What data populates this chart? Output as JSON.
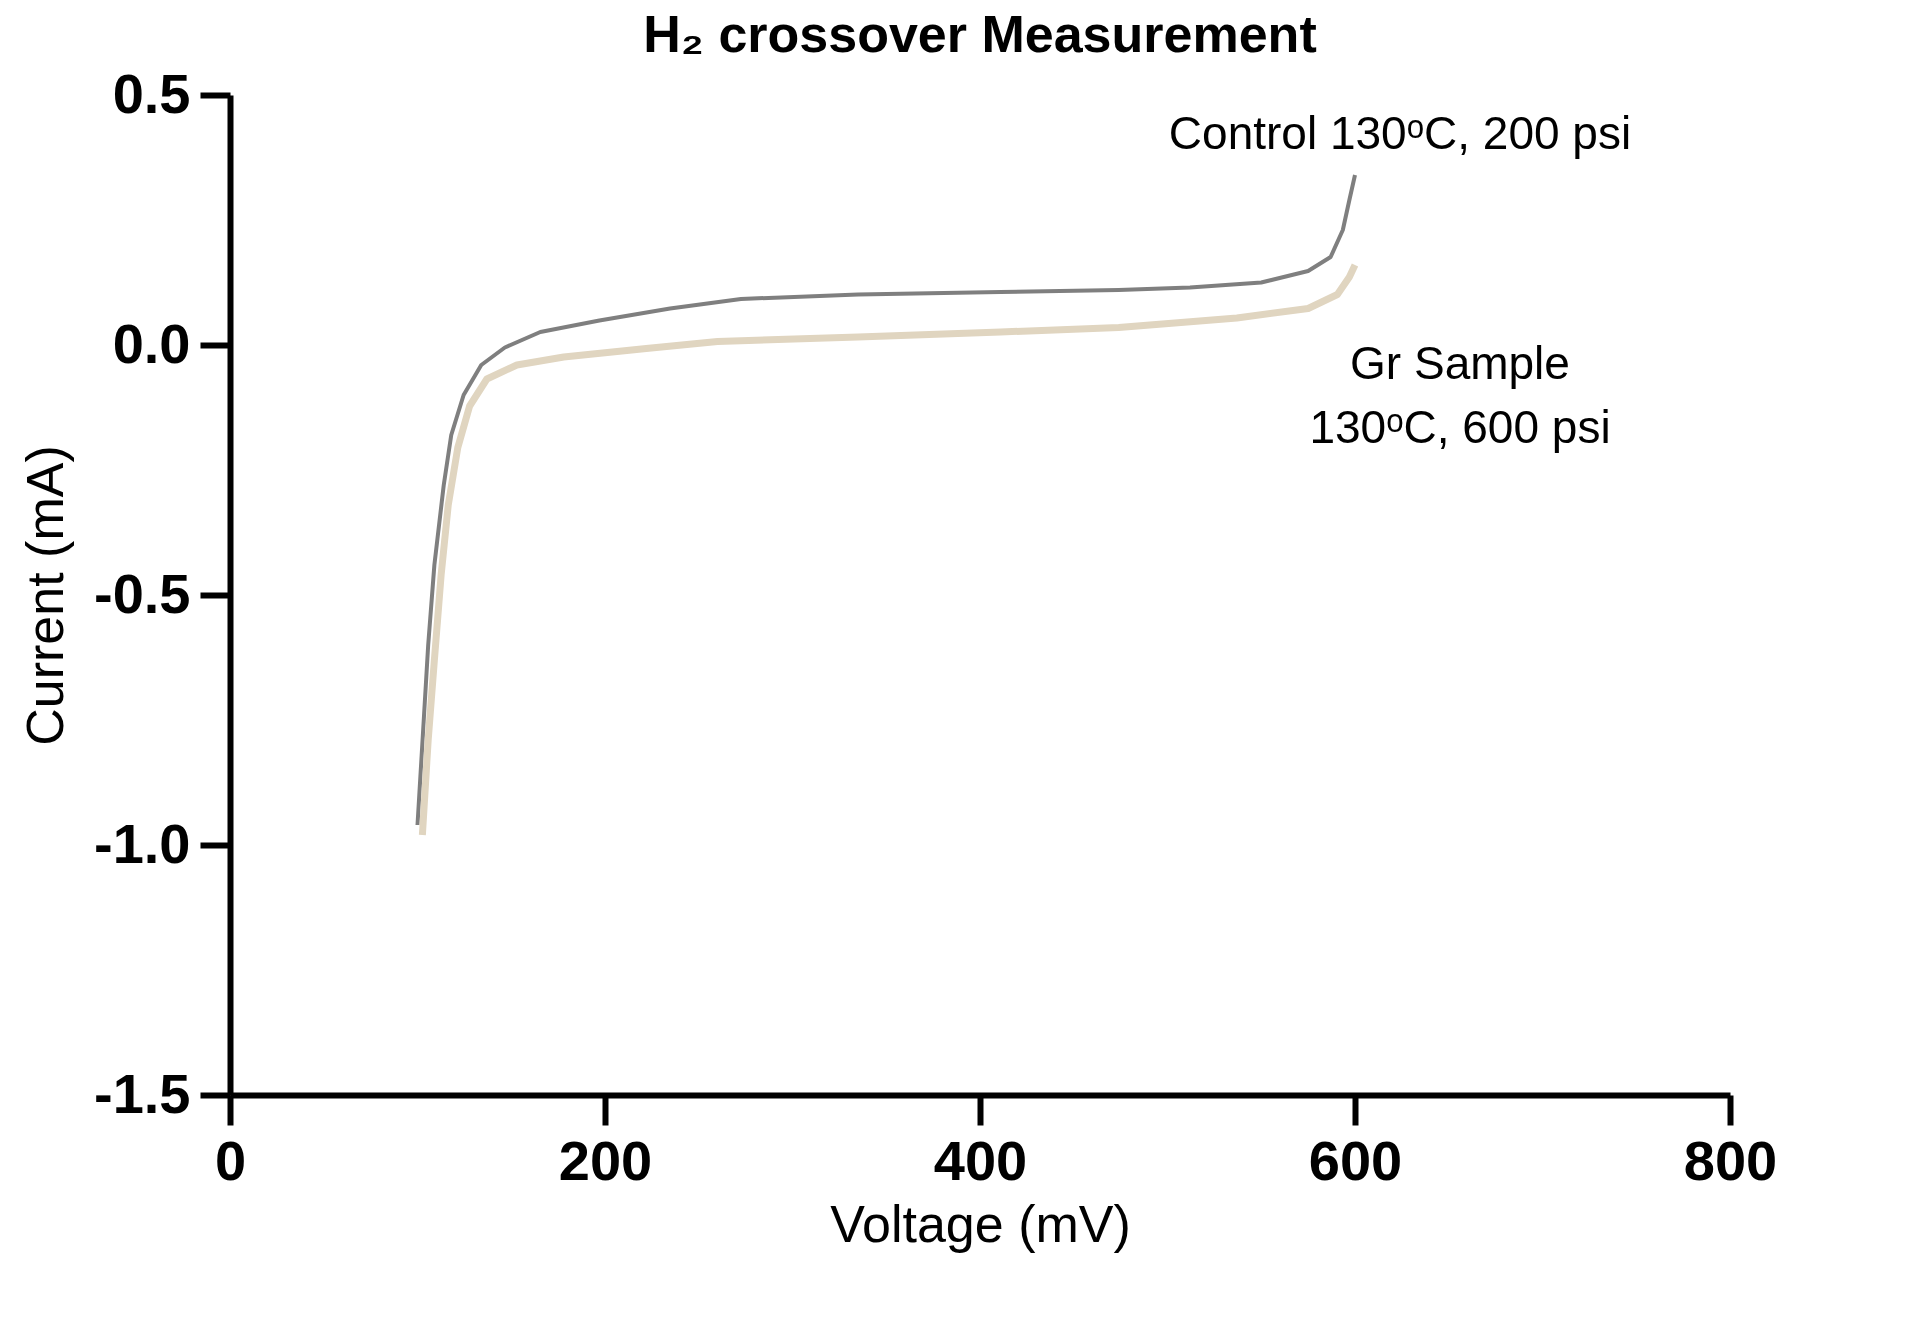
{
  "chart_data": {
    "type": "line",
    "title": "H₂ crossover Measurement",
    "xlabel": "Voltage (mV)",
    "ylabel": "Current (mA)",
    "xlim": [
      0,
      800
    ],
    "xticks": [
      0,
      200,
      400,
      600,
      800
    ],
    "ylim": [
      -1.5,
      0.5
    ],
    "yticks": [
      {
        "value": -1.5,
        "label": "-1.5"
      },
      {
        "value": -1.0,
        "label": "-1.0"
      },
      {
        "value": -0.5,
        "label": "-0.5"
      },
      {
        "value": 0,
        "label": "0.0"
      },
      {
        "value": 0.5,
        "label": "0.5"
      }
    ],
    "grid": false,
    "marker": "none",
    "line_style": "solid",
    "series": [
      {
        "color": "#7f7f7f",
        "x": [
          100,
          102.7,
          105.7,
          109,
          114,
          118,
          124.6,
          134,
          146.6,
          165.5,
          197,
          234.7,
          272.5,
          335,
          411,
          474,
          512,
          550,
          575,
          587,
          593.5,
          597,
          600
        ],
        "values": [
          -0.96,
          -0.79,
          -0.6,
          -0.44,
          -0.28,
          -0.18,
          -0.1,
          -0.04,
          -0.005,
          0.026,
          0.049,
          0.073,
          0.092,
          0.101,
          0.106,
          0.11,
          0.115,
          0.125,
          0.148,
          0.176,
          0.23,
          0.29,
          0.34
        ]
      },
      {
        "color": "#e0d5c0",
        "x": [
          102.6,
          105.7,
          109,
          112.6,
          116.4,
          121.5,
          127.8,
          137,
          153,
          178,
          222,
          260,
          335,
          411,
          474,
          537,
          575,
          590.6,
          597,
          600
        ],
        "values": [
          -0.98,
          -0.79,
          -0.63,
          -0.46,
          -0.32,
          -0.205,
          -0.122,
          -0.068,
          -0.04,
          -0.024,
          -0.007,
          0.007,
          0.016,
          0.026,
          0.035,
          0.054,
          0.073,
          0.101,
          0.136,
          0.16
        ]
      }
    ],
    "annotations": [
      "Control 130ᵒC, 200 psi",
      "Gr Sample\n130ᵒC, 600 psi"
    ]
  }
}
